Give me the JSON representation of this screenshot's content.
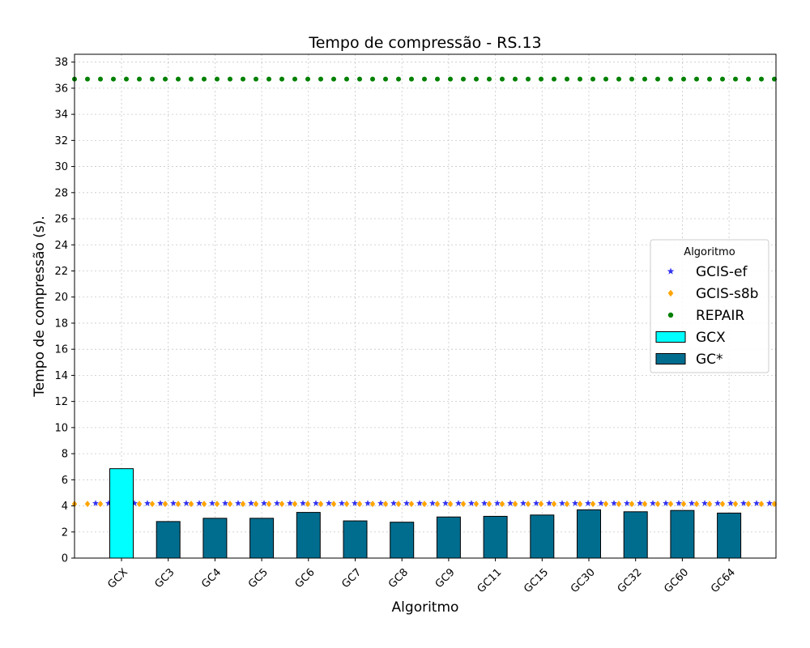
{
  "chart_data": {
    "type": "bar",
    "title": "Tempo de compressão -  RS.13",
    "xlabel": "Algoritmo",
    "ylabel": "Tempo de compressão (s).",
    "ylim": [
      0,
      38.6
    ],
    "yticks": [
      0,
      2,
      4,
      6,
      8,
      10,
      12,
      14,
      16,
      18,
      20,
      22,
      24,
      26,
      28,
      30,
      32,
      34,
      36,
      38
    ],
    "grid": true,
    "legend_placement": "center-right",
    "legend_title": "Algoritmo",
    "categories": [
      "GCX",
      "GC3",
      "GC4",
      "GC5",
      "GC6",
      "GC7",
      "GC8",
      "GC9",
      "GC11",
      "GC15",
      "GC30",
      "GC32",
      "GC60",
      "GC64"
    ],
    "bars": [
      {
        "name": "GCX",
        "color": "#00ffff",
        "categories": [
          "GCX"
        ],
        "values": [
          6.85
        ]
      },
      {
        "name": "GC*",
        "color": "#006d8f",
        "categories": [
          "GC3",
          "GC4",
          "GC5",
          "GC6",
          "GC7",
          "GC8",
          "GC9",
          "GC11",
          "GC15",
          "GC30",
          "GC32",
          "GC60",
          "GC64"
        ],
        "values": [
          2.8,
          3.05,
          3.05,
          3.5,
          2.85,
          2.75,
          3.15,
          3.2,
          3.3,
          3.7,
          3.55,
          3.65,
          3.45
        ]
      }
    ],
    "reference_lines": [
      {
        "name": "GCIS-ef",
        "value": 4.2,
        "color": "#3333ee",
        "marker": "star"
      },
      {
        "name": "GCIS-s8b",
        "value": 4.15,
        "color": "#ffa500",
        "marker": "diamond"
      },
      {
        "name": "REPAIR",
        "value": 36.7,
        "color": "#008000",
        "marker": "circle"
      }
    ]
  }
}
